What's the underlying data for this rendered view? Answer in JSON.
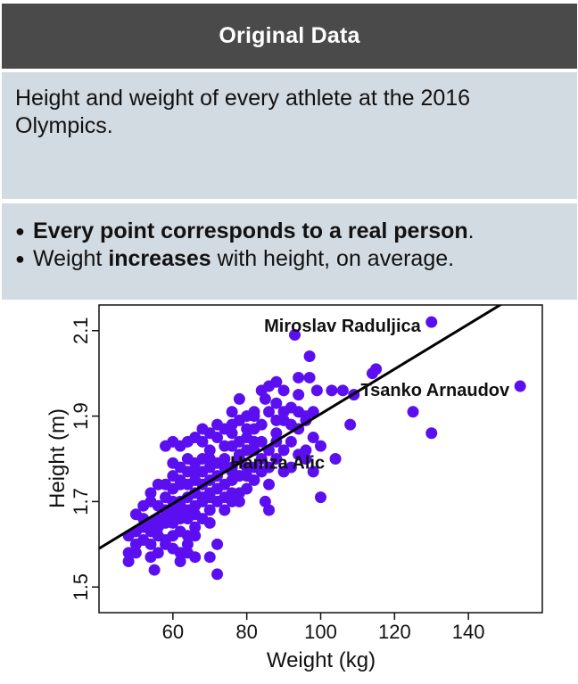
{
  "header": {
    "title": "Original Data"
  },
  "description": "Height and weight of every athlete at the 2016 Olympics.",
  "notes": {
    "bullet1": {
      "strong": "Every point corresponds to a real person",
      "tail": "."
    },
    "bullet2": {
      "pre": "Weight ",
      "strong": "increases",
      "post": " with height, on average."
    }
  },
  "chart_data": {
    "type": "scatter",
    "xlabel": "Weight (kg)",
    "ylabel": "Height (m)",
    "xlim": [
      40,
      160
    ],
    "ylim": [
      1.44,
      2.16
    ],
    "xticks": [
      60,
      80,
      100,
      120,
      140
    ],
    "yticks": [
      1.5,
      1.7,
      1.9,
      2.1
    ],
    "ytick_labels": [
      "1.5",
      "1.7",
      "1.9",
      "2.1"
    ],
    "point_color": "#5b0ef0",
    "line_color": "#000000",
    "regression_line": {
      "x": [
        40,
        160
      ],
      "y": [
        1.59,
        2.22
      ]
    },
    "annotations": [
      {
        "text": "Miroslav Raduljica",
        "x": 130,
        "y": 2.12
      },
      {
        "text": "Tsanko Arnaudov",
        "x": 154,
        "y": 1.97
      },
      {
        "text": "Hamza Alic",
        "x": 104,
        "y": 1.8
      }
    ],
    "points": [
      [
        130,
        2.12
      ],
      [
        154,
        1.97
      ],
      [
        104,
        1.8
      ],
      [
        93,
        2.09
      ],
      [
        97,
        2.04
      ],
      [
        115,
        2.01
      ],
      [
        114,
        2.0
      ],
      [
        94,
        1.99
      ],
      [
        97,
        1.99
      ],
      [
        103,
        1.96
      ],
      [
        106,
        1.96
      ],
      [
        99,
        1.96
      ],
      [
        125,
        1.91
      ],
      [
        109,
        1.95
      ],
      [
        108,
        1.88
      ],
      [
        130,
        1.86
      ],
      [
        96,
        1.8
      ],
      [
        100,
        1.71
      ],
      [
        98,
        1.77
      ],
      [
        96,
        1.82
      ],
      [
        100,
        1.83
      ],
      [
        96,
        1.9
      ],
      [
        98,
        1.91
      ],
      [
        84,
        1.96
      ],
      [
        86,
        1.97
      ],
      [
        88,
        1.98
      ],
      [
        90,
        1.96
      ],
      [
        85,
        1.94
      ],
      [
        88,
        1.93
      ],
      [
        92,
        1.92
      ],
      [
        94,
        1.95
      ],
      [
        82,
        1.9
      ],
      [
        86,
        1.91
      ],
      [
        90,
        1.89
      ],
      [
        94,
        1.91
      ],
      [
        78,
        1.94
      ],
      [
        76,
        1.91
      ],
      [
        82,
        1.87
      ],
      [
        84,
        1.88
      ],
      [
        88,
        1.86
      ],
      [
        80,
        1.85
      ],
      [
        78,
        1.84
      ],
      [
        76,
        1.83
      ],
      [
        74,
        1.83
      ],
      [
        72,
        1.85
      ],
      [
        70,
        1.82
      ],
      [
        68,
        1.84
      ],
      [
        66,
        1.85
      ],
      [
        64,
        1.84
      ],
      [
        62,
        1.83
      ],
      [
        60,
        1.84
      ],
      [
        58,
        1.83
      ],
      [
        76,
        1.86
      ],
      [
        80,
        1.87
      ],
      [
        82,
        1.82
      ],
      [
        84,
        1.8
      ],
      [
        86,
        1.78
      ],
      [
        90,
        1.77
      ],
      [
        92,
        1.78
      ],
      [
        80,
        1.78
      ],
      [
        78,
        1.8
      ],
      [
        76,
        1.78
      ],
      [
        74,
        1.78
      ],
      [
        72,
        1.79
      ],
      [
        70,
        1.8
      ],
      [
        68,
        1.8
      ],
      [
        66,
        1.79
      ],
      [
        64,
        1.8
      ],
      [
        62,
        1.78
      ],
      [
        60,
        1.79
      ],
      [
        78,
        1.76
      ],
      [
        76,
        1.75
      ],
      [
        74,
        1.74
      ],
      [
        72,
        1.73
      ],
      [
        70,
        1.75
      ],
      [
        68,
        1.74
      ],
      [
        66,
        1.75
      ],
      [
        64,
        1.74
      ],
      [
        62,
        1.75
      ],
      [
        60,
        1.73
      ],
      [
        58,
        1.74
      ],
      [
        56,
        1.74
      ],
      [
        54,
        1.72
      ],
      [
        82,
        1.75
      ],
      [
        80,
        1.73
      ],
      [
        78,
        1.72
      ],
      [
        76,
        1.72
      ],
      [
        86,
        1.74
      ],
      [
        85,
        1.7
      ],
      [
        86,
        1.68
      ],
      [
        72,
        1.7
      ],
      [
        70,
        1.71
      ],
      [
        68,
        1.71
      ],
      [
        66,
        1.72
      ],
      [
        64,
        1.71
      ],
      [
        62,
        1.7
      ],
      [
        60,
        1.7
      ],
      [
        58,
        1.71
      ],
      [
        56,
        1.69
      ],
      [
        54,
        1.7
      ],
      [
        52,
        1.69
      ],
      [
        74,
        1.68
      ],
      [
        70,
        1.68
      ],
      [
        66,
        1.67
      ],
      [
        62,
        1.67
      ],
      [
        58,
        1.66
      ],
      [
        56,
        1.66
      ],
      [
        54,
        1.65
      ],
      [
        52,
        1.64
      ],
      [
        50,
        1.63
      ],
      [
        48,
        1.62
      ],
      [
        70,
        1.65
      ],
      [
        66,
        1.64
      ],
      [
        64,
        1.62
      ],
      [
        62,
        1.63
      ],
      [
        60,
        1.62
      ],
      [
        58,
        1.61
      ],
      [
        56,
        1.62
      ],
      [
        54,
        1.6
      ],
      [
        52,
        1.61
      ],
      [
        50,
        1.6
      ],
      [
        48,
        1.58
      ],
      [
        58,
        1.6
      ],
      [
        60,
        1.59
      ],
      [
        62,
        1.58
      ],
      [
        64,
        1.58
      ],
      [
        66,
        1.57
      ],
      [
        56,
        1.58
      ],
      [
        54,
        1.57
      ],
      [
        50,
        1.58
      ],
      [
        48,
        1.56
      ],
      [
        62,
        1.56
      ],
      [
        72,
        1.6
      ],
      [
        70,
        1.57
      ],
      [
        72,
        1.53
      ],
      [
        55,
        1.54
      ],
      [
        64,
        1.6
      ],
      [
        66,
        1.62
      ],
      [
        88,
        1.8
      ],
      [
        90,
        1.82
      ],
      [
        92,
        1.84
      ],
      [
        94,
        1.87
      ],
      [
        92,
        1.88
      ],
      [
        88,
        1.89
      ],
      [
        90,
        1.91
      ],
      [
        96,
        1.89
      ],
      [
        98,
        1.85
      ],
      [
        94,
        1.81
      ],
      [
        84,
        1.84
      ],
      [
        80,
        1.82
      ],
      [
        82,
        1.84
      ],
      [
        78,
        1.81
      ],
      [
        74,
        1.8
      ],
      [
        76,
        1.77
      ],
      [
        60,
        1.76
      ],
      [
        62,
        1.74
      ],
      [
        64,
        1.77
      ],
      [
        66,
        1.77
      ],
      [
        68,
        1.77
      ],
      [
        70,
        1.78
      ],
      [
        72,
        1.76
      ],
      [
        58,
        1.68
      ],
      [
        60,
        1.67
      ],
      [
        62,
        1.66
      ],
      [
        64,
        1.66
      ],
      [
        68,
        1.66
      ],
      [
        56,
        1.64
      ],
      [
        58,
        1.65
      ],
      [
        60,
        1.65
      ],
      [
        54,
        1.63
      ],
      [
        52,
        1.66
      ],
      [
        50,
        1.67
      ],
      [
        60,
        1.68
      ],
      [
        62,
        1.69
      ],
      [
        64,
        1.68
      ],
      [
        66,
        1.69
      ],
      [
        68,
        1.7
      ],
      [
        70,
        1.72
      ],
      [
        74,
        1.71
      ],
      [
        76,
        1.7
      ],
      [
        78,
        1.7
      ],
      [
        80,
        1.76
      ],
      [
        82,
        1.78
      ],
      [
        84,
        1.77
      ],
      [
        86,
        1.82
      ],
      [
        88,
        1.84
      ],
      [
        72,
        1.88
      ],
      [
        74,
        1.87
      ],
      [
        76,
        1.88
      ],
      [
        78,
        1.89
      ],
      [
        80,
        1.9
      ],
      [
        82,
        1.91
      ],
      [
        70,
        1.86
      ],
      [
        68,
        1.87
      ]
    ]
  }
}
